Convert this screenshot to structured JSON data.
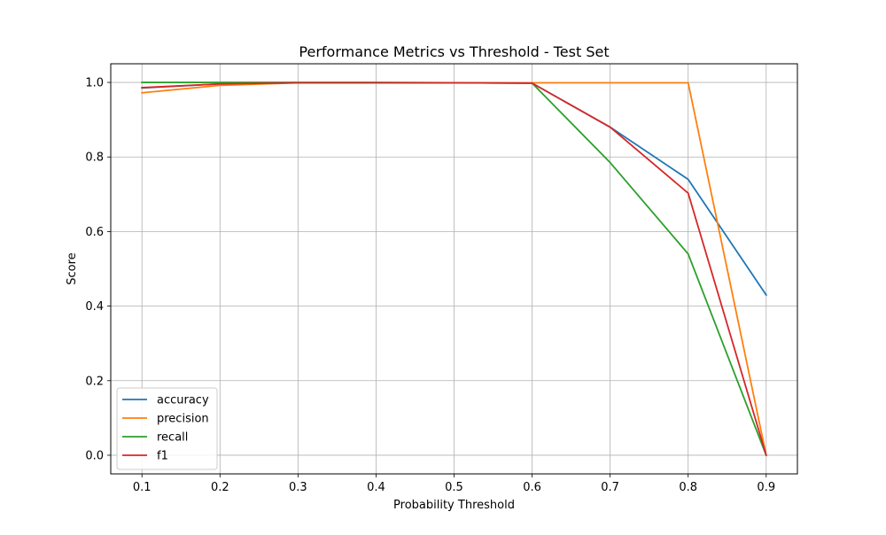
{
  "chart_data": {
    "type": "line",
    "title": "Performance Metrics vs Threshold - Test Set",
    "xlabel": "Probability Threshold",
    "ylabel": "Score",
    "x": [
      0.1,
      0.2,
      0.3,
      0.4,
      0.5,
      0.6,
      0.7,
      0.8,
      0.9
    ],
    "x_tick_labels": [
      "0.1",
      "0.2",
      "0.3",
      "0.4",
      "0.5",
      "0.6",
      "0.7",
      "0.8",
      "0.9"
    ],
    "y_ticks": [
      0.0,
      0.2,
      0.4,
      0.6,
      0.8,
      1.0
    ],
    "y_tick_labels": [
      "0.0",
      "0.2",
      "0.4",
      "0.6",
      "0.8",
      "1.0"
    ],
    "xlim": [
      0.06,
      0.94
    ],
    "ylim": [
      -0.05,
      1.05
    ],
    "grid": true,
    "legend_position": "lower-left",
    "series": [
      {
        "name": "accuracy",
        "color": "#1f77b4",
        "values": [
          0.985,
          0.996,
          0.999,
          0.999,
          0.999,
          0.998,
          0.88,
          0.74,
          0.43
        ]
      },
      {
        "name": "precision",
        "color": "#ff7f0e",
        "values": [
          0.972,
          0.992,
          0.999,
          0.999,
          0.999,
          0.999,
          0.999,
          0.999,
          0.0
        ]
      },
      {
        "name": "recall",
        "color": "#2ca02c",
        "values": [
          1.0,
          1.0,
          1.0,
          1.0,
          0.999,
          0.998,
          0.785,
          0.54,
          0.0
        ]
      },
      {
        "name": "f1",
        "color": "#d62728",
        "values": [
          0.986,
          0.996,
          0.999,
          0.999,
          0.999,
          0.998,
          0.88,
          0.703,
          0.0
        ]
      }
    ]
  }
}
